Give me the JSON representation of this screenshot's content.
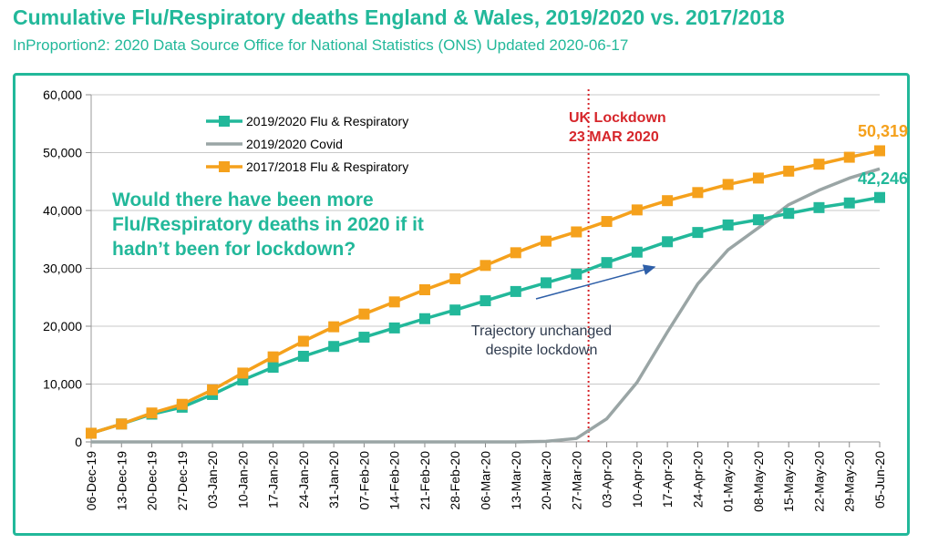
{
  "title": "Cumulative Flu/Respiratory deaths England & Wales, 2019/2020 vs. 2017/2018",
  "subtitle": "InProportion2: 2020 Data Source Office for National Statistics (ONS) Updated 2020-06-17",
  "colors": {
    "accent": "#22b89a",
    "flu_2019": "#22b89a",
    "covid": "#9aa5a5",
    "flu_2017": "#f5a11c",
    "lockdown": "#d6262b",
    "arrow": "#2e5fa8",
    "annotation": "#2f3b4e"
  },
  "chart_data": {
    "type": "line",
    "title": "Cumulative Flu/Respiratory deaths England & Wales, 2019/2020 vs. 2017/2018",
    "xlabel": "",
    "ylabel": "",
    "ylim": [
      0,
      60000
    ],
    "yticks": [
      "0",
      "10,000",
      "20,000",
      "30,000",
      "40,000",
      "50,000",
      "60,000"
    ],
    "grid": "horizontal",
    "legend_position": "top-left",
    "categories": [
      "06-Dec-19",
      "13-Dec-19",
      "20-Dec-19",
      "27-Dec-19",
      "03-Jan-20",
      "10-Jan-20",
      "17-Jan-20",
      "24-Jan-20",
      "31-Jan-20",
      "07-Feb-20",
      "14-Feb-20",
      "21-Feb-20",
      "28-Feb-20",
      "06-Mar-20",
      "13-Mar-20",
      "20-Mar-20",
      "27-Mar-20",
      "03-Apr-20",
      "10-Apr-20",
      "17-Apr-20",
      "24-Apr-20",
      "01-May-20",
      "08-May-20",
      "15-May-20",
      "22-May-20",
      "29-May-20",
      "05-Jun-20"
    ],
    "series": [
      {
        "name": "2019/2020 Flu & Respiratory",
        "key": "flu_2019",
        "marker": "square",
        "values": [
          1500,
          3100,
          4800,
          6000,
          8200,
          10700,
          12900,
          14800,
          16500,
          18100,
          19700,
          21300,
          22800,
          24400,
          26000,
          27500,
          29000,
          31000,
          32800,
          34600,
          36200,
          37500,
          38400,
          39500,
          40500,
          41300,
          42246
        ]
      },
      {
        "name": "2019/2020 Covid",
        "key": "covid",
        "marker": "none",
        "values": [
          0,
          0,
          0,
          0,
          0,
          0,
          0,
          0,
          0,
          0,
          0,
          0,
          0,
          0,
          0,
          100,
          600,
          4000,
          10300,
          19000,
          27300,
          33200,
          37000,
          41000,
          43500,
          45600,
          47200
        ]
      },
      {
        "name": "2017/2018 Flu & Respiratory",
        "key": "flu_2017",
        "marker": "square",
        "values": [
          1500,
          3100,
          5000,
          6500,
          9000,
          11900,
          14700,
          17400,
          19900,
          22100,
          24200,
          26300,
          28200,
          30500,
          32700,
          34700,
          36300,
          38100,
          40100,
          41700,
          43100,
          44500,
          45600,
          46800,
          48000,
          49200,
          50319
        ]
      }
    ],
    "annotations": {
      "lockdown_line_1": "UK Lockdown",
      "lockdown_line_2": "23 MAR 2020",
      "lockdown_x": 16.4,
      "question_line_1": "Would there have been more",
      "question_line_2": "Flu/Respiratory deaths in 2020 if it",
      "question_line_3": "hadn’t been for lockdown?",
      "trajectory_line_1": "Trajectory unchanged",
      "trajectory_line_2": "despite lockdown",
      "end_label_2017": "50,319",
      "end_label_2019": "42,246"
    }
  }
}
